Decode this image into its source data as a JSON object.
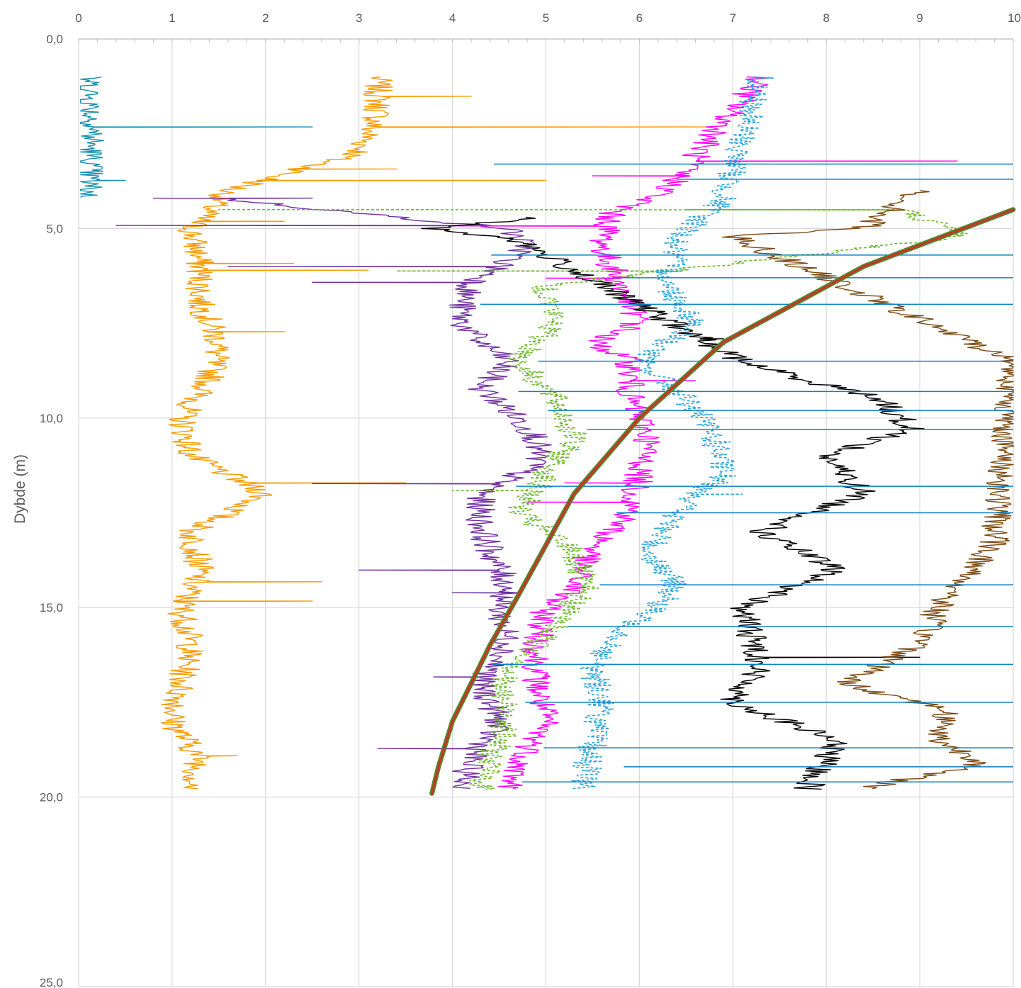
{
  "chart_data": {
    "type": "line",
    "title": "",
    "xlabel": "",
    "ylabel": "Dybde (m)",
    "xlim": [
      0,
      10
    ],
    "ylim": [
      0,
      25
    ],
    "y_inverted": true,
    "x_axis_position": "top",
    "grid": true,
    "legend": "none",
    "x_ticks": [
      "0",
      "1",
      "2",
      "3",
      "4",
      "5",
      "6",
      "7",
      "8",
      "9",
      "10"
    ],
    "y_ticks": [
      "0,0",
      "5,0",
      "10,0",
      "15,0",
      "20,0",
      "25,0"
    ],
    "colors": {
      "orange": "#f59a00",
      "teal": "#1a8fb0",
      "purple": "#7030a0",
      "magenta": "#ff00ff",
      "green_dashed": "#70b82e",
      "cyan_dashed": "#2aa6d6",
      "black": "#000000",
      "brown": "#7b4a12",
      "blue": "#0d7fc4",
      "reference": "#c0392b"
    },
    "series": [
      {
        "style": "orange",
        "profile": [
          [
            1,
            3.2
          ],
          [
            2,
            3.2
          ],
          [
            3,
            3.0
          ],
          [
            4,
            1.6
          ],
          [
            5,
            1.2
          ],
          [
            6,
            1.3
          ],
          [
            7,
            1.3
          ],
          [
            8,
            1.5
          ],
          [
            9,
            1.4
          ],
          [
            10,
            1.1
          ],
          [
            11,
            1.2
          ],
          [
            12,
            2.0
          ],
          [
            13,
            1.2
          ],
          [
            14,
            1.3
          ],
          [
            15,
            1.1
          ],
          [
            16,
            1.2
          ],
          [
            17,
            1.1
          ],
          [
            18,
            1.0
          ],
          [
            19,
            1.3
          ],
          [
            19.8,
            1.2
          ]
        ],
        "spikes": [
          [
            1.5,
            4.2
          ],
          [
            2.3,
            6.7
          ],
          [
            3.4,
            3.4
          ],
          [
            3.7,
            5.0
          ],
          [
            4.8,
            2.2
          ],
          [
            5.9,
            2.3
          ],
          [
            6.1,
            3.1
          ],
          [
            7.7,
            2.2
          ],
          [
            11.7,
            3.5
          ],
          [
            14.3,
            2.6
          ],
          [
            14.8,
            2.5
          ],
          [
            18.9,
            1.7
          ]
        ]
      },
      {
        "style": "teal",
        "profile": [
          [
            1,
            0.1
          ],
          [
            1.8,
            0.12
          ],
          [
            2.3,
            0.15
          ],
          [
            3.2,
            0.12
          ],
          [
            4.2,
            0.1
          ]
        ],
        "spikes": [
          [
            2.3,
            2.5
          ],
          [
            3.7,
            0.5
          ],
          [
            4.2,
            0.5
          ]
        ]
      },
      {
        "style": "purple",
        "profile": [
          [
            4.2,
            1.5
          ],
          [
            4.6,
            3.0
          ],
          [
            5.0,
            4.6
          ],
          [
            5.5,
            4.8
          ],
          [
            6.5,
            4.2
          ],
          [
            7,
            4.1
          ],
          [
            7.5,
            4.1
          ],
          [
            8,
            4.3
          ],
          [
            8.5,
            4.6
          ],
          [
            9.2,
            4.3
          ],
          [
            9.8,
            4.6
          ],
          [
            10.5,
            4.9
          ],
          [
            11.2,
            4.9
          ],
          [
            12,
            4.3
          ],
          [
            12.8,
            4.3
          ],
          [
            13.5,
            4.4
          ],
          [
            14.5,
            4.6
          ],
          [
            15,
            4.5
          ],
          [
            16,
            4.6
          ],
          [
            17,
            4.3
          ],
          [
            18,
            4.5
          ],
          [
            19,
            4.2
          ],
          [
            19.8,
            4.1
          ]
        ],
        "spikes": [
          [
            2.3,
            2.5
          ],
          [
            4.2,
            0.8
          ],
          [
            4.9,
            0.4
          ],
          [
            6.0,
            1.6
          ],
          [
            6.4,
            2.5
          ],
          [
            11.7,
            2.5
          ],
          [
            14.0,
            3.0
          ],
          [
            14.6,
            4.0
          ],
          [
            16.8,
            3.8
          ],
          [
            18.7,
            3.2
          ]
        ]
      },
      {
        "style": "magenta",
        "profile": [
          [
            1.0,
            7.3
          ],
          [
            4,
            6.3
          ],
          [
            4.6,
            5.7
          ],
          [
            5.5,
            5.6
          ],
          [
            6.5,
            5.8
          ],
          [
            7.5,
            6.0
          ],
          [
            8.0,
            5.5
          ],
          [
            8.5,
            5.9
          ],
          [
            9.5,
            5.9
          ],
          [
            10.5,
            6.1
          ],
          [
            12.5,
            5.9
          ],
          [
            13.2,
            5.6
          ],
          [
            13.8,
            5.4
          ],
          [
            14.5,
            5.3
          ],
          [
            15,
            5.0
          ],
          [
            16,
            4.9
          ],
          [
            17,
            4.9
          ],
          [
            18,
            5.0
          ],
          [
            19.2,
            4.7
          ],
          [
            19.8,
            4.6
          ]
        ],
        "spikes": [
          [
            3.2,
            9.4
          ],
          [
            3.6,
            5.5
          ],
          [
            4.9,
            4.0
          ],
          [
            6.3,
            5.0
          ],
          [
            7.5,
            5.8
          ],
          [
            9.0,
            6.6
          ],
          [
            11.7,
            5.2
          ],
          [
            12.2,
            4.8
          ],
          [
            14.7,
            5.2
          ]
        ]
      },
      {
        "style": "green_dashed",
        "profile": [
          [
            4.5,
            8.8
          ],
          [
            5.2,
            9.5
          ],
          [
            6.5,
            5.0
          ],
          [
            7.5,
            5.1
          ],
          [
            8.5,
            4.7
          ],
          [
            9.5,
            5.1
          ],
          [
            10.5,
            5.3
          ],
          [
            12.5,
            4.7
          ],
          [
            13.5,
            5.3
          ],
          [
            14.5,
            5.4
          ],
          [
            15.5,
            5.1
          ],
          [
            17,
            4.5
          ],
          [
            18,
            4.6
          ],
          [
            19,
            4.4
          ],
          [
            19.8,
            4.3
          ]
        ],
        "spikes": [
          [
            2.3,
            6.5
          ],
          [
            3.7,
            1.5
          ],
          [
            6.1,
            3.4
          ],
          [
            11.9,
            4.0
          ]
        ]
      },
      {
        "style": "cyan_dashed",
        "profile": [
          [
            1.0,
            7.3
          ],
          [
            4.2,
            6.9
          ],
          [
            5.3,
            6.4
          ],
          [
            6.5,
            6.3
          ],
          [
            7.5,
            6.6
          ],
          [
            8.5,
            6.0
          ],
          [
            9.5,
            6.5
          ],
          [
            10.5,
            6.8
          ],
          [
            11.5,
            6.9
          ],
          [
            12.5,
            6.4
          ],
          [
            13.5,
            6.1
          ],
          [
            14.5,
            6.4
          ],
          [
            15.5,
            5.9
          ],
          [
            16.5,
            5.5
          ],
          [
            17.5,
            5.6
          ],
          [
            18.5,
            5.5
          ],
          [
            19.8,
            5.4
          ]
        ],
        "spikes": [
          [
            8.5,
            6.1
          ],
          [
            12.0,
            7.1
          ]
        ]
      },
      {
        "style": "black",
        "profile": [
          [
            4.7,
            4.9
          ],
          [
            5.0,
            3.8
          ],
          [
            5.3,
            4.7
          ],
          [
            8.5,
            7.1
          ],
          [
            9.0,
            7.8
          ],
          [
            9.5,
            8.6
          ],
          [
            10.3,
            8.9
          ],
          [
            11.0,
            8.0
          ],
          [
            12.0,
            8.4
          ],
          [
            13.0,
            7.3
          ],
          [
            14.0,
            8.1
          ],
          [
            15.0,
            7.1
          ],
          [
            16.5,
            7.3
          ],
          [
            17.5,
            7.0
          ],
          [
            18.5,
            8.1
          ],
          [
            19.8,
            7.8
          ]
        ],
        "spikes": [
          [
            7.9,
            6.9
          ],
          [
            16.3,
            9.0
          ],
          [
            19.8,
            9.6
          ]
        ]
      },
      {
        "style": "brown",
        "profile": [
          [
            4.0,
            9.0
          ],
          [
            5.0,
            8.4
          ],
          [
            5.2,
            7.0
          ],
          [
            8.5,
            10.0
          ],
          [
            13.3,
            9.8
          ],
          [
            14.2,
            9.5
          ],
          [
            15.0,
            9.2
          ],
          [
            16.0,
            9.0
          ],
          [
            17.0,
            8.2
          ],
          [
            17.7,
            9.3
          ],
          [
            18.5,
            9.2
          ],
          [
            19.1,
            9.7
          ],
          [
            19.5,
            8.9
          ],
          [
            19.8,
            8.4
          ]
        ],
        "spikes": []
      },
      {
        "style": "blue",
        "profile": [],
        "spikes": [
          [
            3.3,
            10
          ],
          [
            3.7,
            10
          ],
          [
            5.7,
            10
          ],
          [
            6.3,
            10
          ],
          [
            7.0,
            10
          ],
          [
            8.5,
            10
          ],
          [
            9.3,
            10
          ],
          [
            9.8,
            10
          ],
          [
            10.3,
            10
          ],
          [
            11.8,
            10
          ],
          [
            12.5,
            10
          ],
          [
            14.4,
            10
          ],
          [
            15.5,
            10
          ],
          [
            16.5,
            10
          ],
          [
            17.5,
            10
          ],
          [
            18.7,
            10
          ],
          [
            19.2,
            10
          ],
          [
            19.6,
            10
          ]
        ]
      },
      {
        "style": "reference",
        "x": [
          3.78,
          3.85,
          4.0,
          4.2,
          4.4,
          4.7,
          5.3,
          6.0,
          6.9,
          8.4,
          10.0
        ],
        "y": [
          19.9,
          19.2,
          18.0,
          17.0,
          16.0,
          14.7,
          12.0,
          10.0,
          8.0,
          6.0,
          4.5
        ]
      }
    ]
  }
}
